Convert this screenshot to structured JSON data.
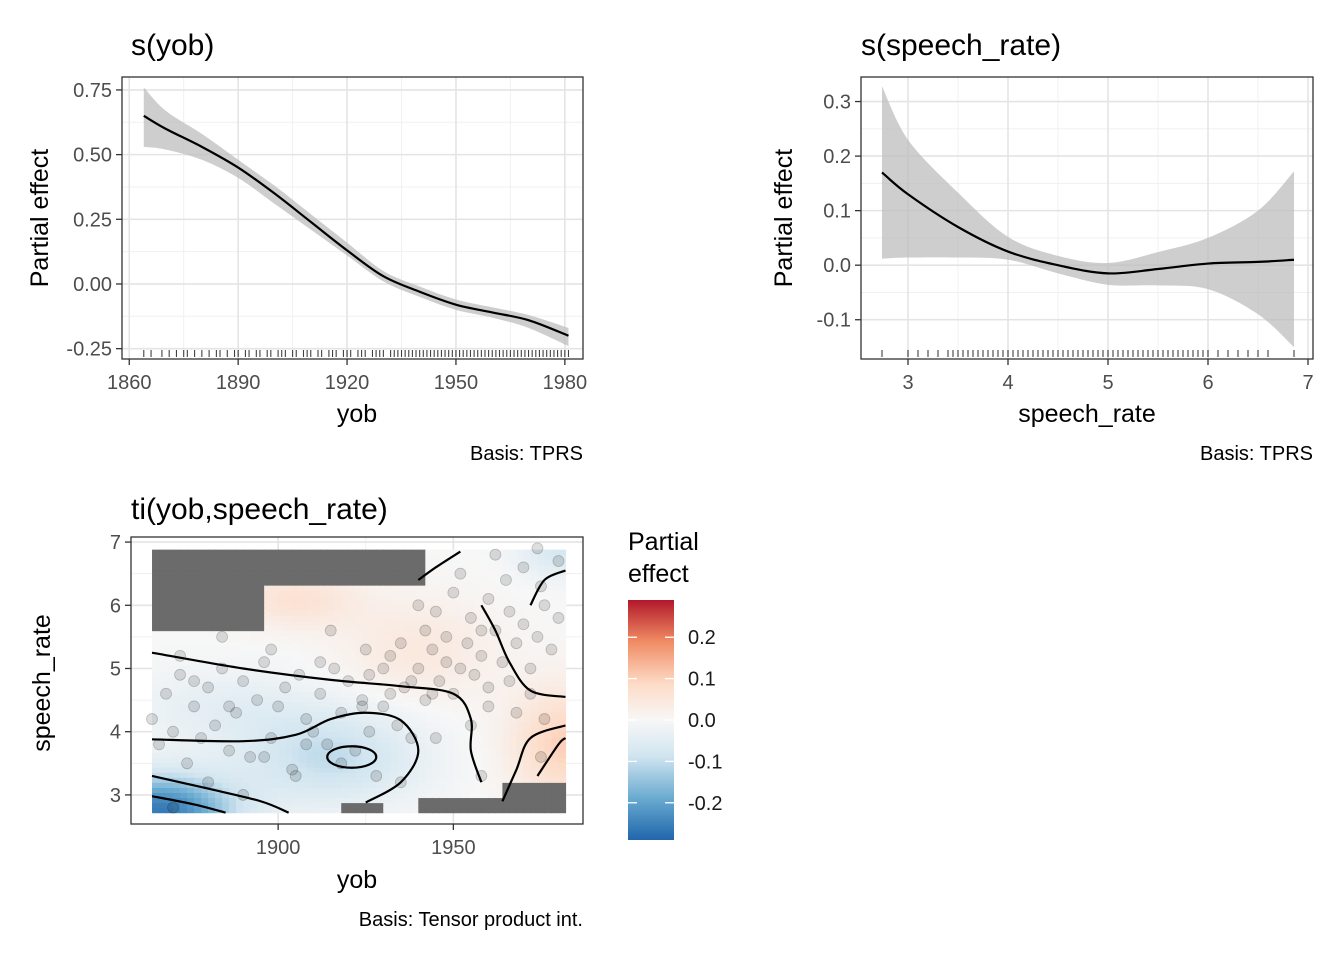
{
  "chart_data": [
    {
      "type": "line",
      "title": "s(yob)",
      "xlabel": "yob",
      "ylabel": "Partial effect",
      "caption": "Basis: TPRS",
      "xlim": [
        1858,
        1985
      ],
      "ylim": [
        -0.29,
        0.8
      ],
      "xticks": [
        1860,
        1890,
        1920,
        1950,
        1980
      ],
      "xtick_labels": [
        "1860",
        "1890",
        "1920",
        "1950",
        "1980"
      ],
      "yticks": [
        -0.25,
        0,
        0.25,
        0.5,
        0.75
      ],
      "ytick_labels": [
        "-0.25",
        "0.00",
        "0.25",
        "0.50",
        "0.75"
      ],
      "grid": true,
      "series": [
        {
          "x": [
            1864,
            1870,
            1880,
            1890,
            1900,
            1910,
            1920,
            1930,
            1940,
            1950,
            1960,
            1970,
            1981
          ],
          "y": [
            0.65,
            0.6,
            0.53,
            0.45,
            0.35,
            0.24,
            0.13,
            0.03,
            -0.03,
            -0.08,
            -0.11,
            -0.14,
            -0.2
          ],
          "lower": [
            0.53,
            0.52,
            0.48,
            0.41,
            0.31,
            0.21,
            0.11,
            0.01,
            -0.05,
            -0.1,
            -0.13,
            -0.17,
            -0.24
          ],
          "upper": [
            0.76,
            0.67,
            0.58,
            0.48,
            0.38,
            0.27,
            0.16,
            0.05,
            -0.01,
            -0.06,
            -0.09,
            -0.12,
            -0.17
          ]
        }
      ],
      "rug": [
        1864,
        1866,
        1869,
        1871,
        1873,
        1875,
        1876,
        1878,
        1880,
        1882,
        1884,
        1885,
        1887,
        1889,
        1890,
        1892,
        1893,
        1895,
        1896,
        1898,
        1899,
        1901,
        1902,
        1903,
        1905,
        1906,
        1908,
        1909,
        1910,
        1912,
        1913,
        1915,
        1916,
        1917,
        1919,
        1920,
        1921,
        1923,
        1924,
        1925,
        1927,
        1928,
        1929,
        1930,
        1932,
        1933,
        1934,
        1935,
        1936,
        1937,
        1938,
        1939,
        1940,
        1941,
        1942,
        1943,
        1944,
        1945,
        1946,
        1947,
        1948,
        1949,
        1950,
        1951,
        1952,
        1953,
        1954,
        1955,
        1956,
        1957,
        1958,
        1959,
        1960,
        1961,
        1962,
        1963,
        1964,
        1965,
        1966,
        1967,
        1968,
        1969,
        1970,
        1971,
        1972,
        1973,
        1974,
        1975,
        1976,
        1977,
        1978,
        1979,
        1980,
        1981
      ]
    },
    {
      "type": "line",
      "title": "s(speech_rate)",
      "xlabel": "speech_rate",
      "ylabel": "Partial effect",
      "caption": "Basis: TPRS",
      "xlim": [
        2.53,
        7.05
      ],
      "ylim": [
        -0.172,
        0.345
      ],
      "xticks": [
        3,
        4,
        5,
        6,
        7
      ],
      "xtick_labels": [
        "3",
        "4",
        "5",
        "6",
        "7"
      ],
      "yticks": [
        -0.1,
        0,
        0.1,
        0.2,
        0.3
      ],
      "ytick_labels": [
        "-0.1",
        "0.0",
        "0.1",
        "0.2",
        "0.3"
      ],
      "grid": true,
      "series": [
        {
          "x": [
            2.74,
            3.0,
            3.5,
            4.0,
            4.5,
            5.0,
            5.5,
            6.0,
            6.5,
            6.86
          ],
          "y": [
            0.17,
            0.13,
            0.07,
            0.025,
            0.0,
            -0.015,
            -0.007,
            0.003,
            0.006,
            0.01
          ],
          "lower": [
            0.012,
            0.014,
            0.014,
            0.01,
            -0.015,
            -0.036,
            -0.037,
            -0.044,
            -0.09,
            -0.15
          ],
          "upper": [
            0.328,
            0.23,
            0.133,
            0.052,
            0.017,
            0.004,
            0.024,
            0.05,
            0.1,
            0.172
          ]
        }
      ],
      "rug": [
        2.74,
        3.0,
        3.1,
        3.2,
        3.3,
        3.4,
        3.45,
        3.5,
        3.55,
        3.6,
        3.65,
        3.7,
        3.75,
        3.8,
        3.85,
        3.9,
        3.95,
        4.0,
        4.05,
        4.1,
        4.15,
        4.2,
        4.25,
        4.3,
        4.35,
        4.4,
        4.45,
        4.5,
        4.55,
        4.6,
        4.65,
        4.7,
        4.75,
        4.8,
        4.85,
        4.9,
        4.95,
        5.0,
        5.05,
        5.1,
        5.15,
        5.2,
        5.25,
        5.3,
        5.35,
        5.4,
        5.45,
        5.5,
        5.55,
        5.6,
        5.65,
        5.7,
        5.75,
        5.8,
        5.85,
        5.9,
        5.95,
        6.0,
        6.1,
        6.2,
        6.3,
        6.4,
        6.5,
        6.6,
        6.86
      ]
    },
    {
      "type": "heatmap",
      "title": "ti(yob,speech_rate)",
      "xlabel": "yob",
      "ylabel": "speech_rate",
      "caption": "Basis: Tensor product int.",
      "xlim": [
        1858,
        1987
      ],
      "ylim": [
        2.54,
        7.08
      ],
      "xticks": [
        1900,
        1950
      ],
      "xtick_labels": [
        "1900",
        "1950"
      ],
      "yticks": [
        3,
        4,
        5,
        6,
        7
      ],
      "ytick_labels": [
        "3",
        "4",
        "5",
        "6",
        "7"
      ],
      "grid": true,
      "legend": {
        "title": [
          "Partial",
          "effect"
        ],
        "placement": "right",
        "range": [
          -0.29,
          0.29
        ],
        "ticks": [
          0.2,
          0.1,
          0.0,
          -0.1,
          -0.2
        ],
        "tick_labels": [
          "0.2",
          "0.1",
          "0.0",
          "-0.1",
          "-0.2"
        ],
        "colors": [
          "#b2182b",
          "#ef8a62",
          "#fddbc7",
          "#f7f7f7",
          "#d1e5f0",
          "#67a9cf",
          "#2166ac"
        ]
      },
      "points": [
        [
          1864,
          4.2
        ],
        [
          1866,
          3.8
        ],
        [
          1868,
          4.6
        ],
        [
          1870,
          4.0
        ],
        [
          1872,
          4.9
        ],
        [
          1874,
          3.5
        ],
        [
          1876,
          4.4
        ],
        [
          1878,
          3.9
        ],
        [
          1880,
          4.7
        ],
        [
          1882,
          4.1
        ],
        [
          1884,
          5.0
        ],
        [
          1886,
          3.7
        ],
        [
          1888,
          4.3
        ],
        [
          1890,
          4.8
        ],
        [
          1892,
          3.6
        ],
        [
          1894,
          4.5
        ],
        [
          1896,
          5.1
        ],
        [
          1898,
          3.9
        ],
        [
          1900,
          4.4
        ],
        [
          1902,
          4.7
        ],
        [
          1904,
          3.4
        ],
        [
          1906,
          4.9
        ],
        [
          1908,
          4.2
        ],
        [
          1910,
          4.0
        ],
        [
          1912,
          4.6
        ],
        [
          1914,
          3.8
        ],
        [
          1916,
          5.0
        ],
        [
          1918,
          4.3
        ],
        [
          1920,
          4.8
        ],
        [
          1922,
          3.7
        ],
        [
          1924,
          4.5
        ],
        [
          1926,
          4.9
        ],
        [
          1928,
          3.3
        ],
        [
          1930,
          4.4
        ],
        [
          1932,
          5.2
        ],
        [
          1934,
          4.1
        ],
        [
          1936,
          4.7
        ],
        [
          1938,
          3.9
        ],
        [
          1940,
          5.0
        ],
        [
          1942,
          4.5
        ],
        [
          1944,
          5.3
        ],
        [
          1946,
          4.8
        ],
        [
          1948,
          5.5
        ],
        [
          1950,
          4.6
        ],
        [
          1952,
          5.0
        ],
        [
          1954,
          5.4
        ],
        [
          1956,
          4.9
        ],
        [
          1958,
          5.2
        ],
        [
          1960,
          4.7
        ],
        [
          1962,
          5.6
        ],
        [
          1964,
          5.1
        ],
        [
          1966,
          4.8
        ],
        [
          1968,
          5.4
        ],
        [
          1970,
          5.7
        ],
        [
          1972,
          5.0
        ],
        [
          1974,
          5.5
        ],
        [
          1976,
          6.0
        ],
        [
          1978,
          5.3
        ],
        [
          1980,
          5.8
        ],
        [
          1945,
          5.9
        ],
        [
          1950,
          6.2
        ],
        [
          1955,
          5.8
        ],
        [
          1960,
          6.1
        ],
        [
          1965,
          6.4
        ],
        [
          1970,
          6.6
        ],
        [
          1975,
          6.3
        ],
        [
          1940,
          6.0
        ],
        [
          1935,
          5.4
        ],
        [
          1925,
          5.3
        ],
        [
          1915,
          5.6
        ],
        [
          1968,
          4.3
        ],
        [
          1972,
          4.6
        ],
        [
          1976,
          4.2
        ],
        [
          1960,
          4.4
        ],
        [
          1955,
          4.1
        ],
        [
          1975,
          3.6
        ],
        [
          1958,
          3.3
        ],
        [
          1945,
          3.9
        ],
        [
          1935,
          3.2
        ],
        [
          1905,
          3.3
        ],
        [
          1880,
          3.2
        ],
        [
          1870,
          2.8
        ],
        [
          1890,
          3.0
        ],
        [
          1926,
          4.0
        ],
        [
          1918,
          3.5
        ],
        [
          1912,
          5.1
        ],
        [
          1898,
          5.3
        ],
        [
          1884,
          5.5
        ],
        [
          1872,
          5.2
        ],
        [
          1930,
          5.0
        ],
        [
          1942,
          5.6
        ],
        [
          1952,
          6.5
        ],
        [
          1962,
          6.8
        ],
        [
          1974,
          6.9
        ],
        [
          1980,
          6.7
        ],
        [
          1966,
          5.9
        ],
        [
          1958,
          5.6
        ],
        [
          1948,
          5.1
        ],
        [
          1944,
          4.6
        ],
        [
          1938,
          4.8
        ],
        [
          1932,
          4.6
        ],
        [
          1924,
          4.4
        ],
        [
          1908,
          3.8
        ],
        [
          1896,
          3.6
        ],
        [
          1886,
          4.4
        ],
        [
          1876,
          4.8
        ]
      ],
      "contours": [
        [
          [
            1864,
            5.25
          ],
          [
            1890,
            5.0
          ],
          [
            1915,
            4.82
          ],
          [
            1935,
            4.72
          ],
          [
            1950,
            4.6
          ],
          [
            1955,
            4.2
          ],
          [
            1955,
            3.7
          ],
          [
            1958,
            3.2
          ]
        ],
        [
          [
            1864,
            3.88
          ],
          [
            1890,
            3.85
          ],
          [
            1905,
            3.95
          ],
          [
            1915,
            4.2
          ],
          [
            1925,
            4.3
          ],
          [
            1935,
            4.18
          ],
          [
            1940,
            3.7
          ],
          [
            1935,
            3.2
          ],
          [
            1925,
            2.88
          ]
        ],
        [
          [
            1864,
            3.3
          ],
          [
            1880,
            3.1
          ],
          [
            1895,
            2.9
          ],
          [
            1903,
            2.72
          ]
        ],
        [
          [
            1864,
            2.98
          ],
          [
            1876,
            2.85
          ],
          [
            1885,
            2.72
          ]
        ],
        [
          [
            1964,
            2.9
          ],
          [
            1968,
            3.4
          ],
          [
            1972,
            3.9
          ],
          [
            1982,
            4.1
          ]
        ],
        [
          [
            1974,
            3.3
          ],
          [
            1980,
            3.8
          ],
          [
            1982,
            3.9
          ]
        ],
        [
          [
            1940,
            6.4
          ],
          [
            1945,
            6.6
          ],
          [
            1952,
            6.85
          ]
        ],
        [
          [
            1958,
            6.0
          ],
          [
            1962,
            5.6
          ],
          [
            1966,
            5.1
          ],
          [
            1972,
            4.65
          ],
          [
            1982,
            4.55
          ]
        ],
        [
          [
            1972,
            6.0
          ],
          [
            1976,
            6.4
          ],
          [
            1982,
            6.55
          ]
        ]
      ],
      "ellipse": {
        "cx": 1921,
        "cy": 3.6,
        "rx": 7,
        "ry": 0.17
      }
    }
  ]
}
